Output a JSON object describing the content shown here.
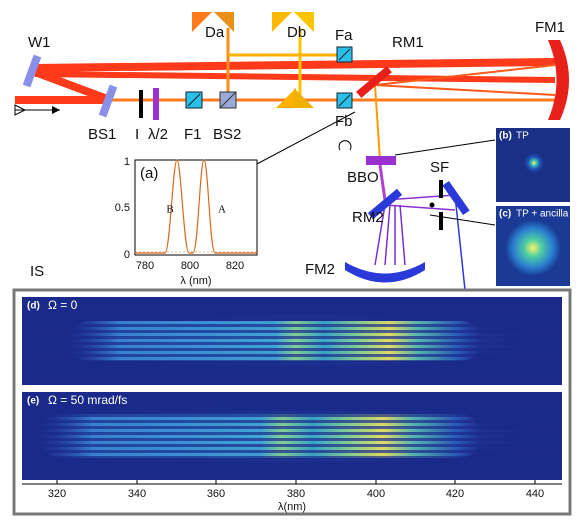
{
  "labels": {
    "w1": "W1",
    "bs1": "BS1",
    "iris": "I",
    "half_wave": "λ/2",
    "f1": "F1",
    "bs2": "BS2",
    "da": "Da",
    "db": "Db",
    "fa": "Fa",
    "fb": "Fb",
    "rm1": "RM1",
    "fm1": "FM1",
    "bbo": "BBO",
    "rm2": "RM2",
    "sf": "SF",
    "fm2": "FM2",
    "is": "IS"
  },
  "inset": {
    "tag": "(a)",
    "y_ticks": [
      "0",
      "0.5",
      "1"
    ],
    "x_ticks": [
      "780",
      "800",
      "820"
    ],
    "x_label": "λ (nm)",
    "curves": [
      "B",
      "A"
    ]
  },
  "panel_b": {
    "tag": "(b)",
    "text": "TP"
  },
  "panel_c": {
    "tag": "(c)",
    "text": "TP + ancilla"
  },
  "panel_d": {
    "tag": "(d)",
    "text": "Ω = 0"
  },
  "panel_e": {
    "tag": "(e)",
    "text": "Ω = 50 mrad/fs"
  },
  "spectrum_axis": {
    "ticks": [
      "320",
      "340",
      "360",
      "380",
      "400",
      "420",
      "440"
    ],
    "label": "λ(nm)"
  }
}
